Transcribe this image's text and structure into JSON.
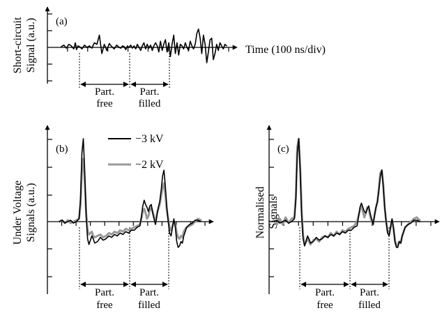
{
  "chart_data": [
    {
      "panel": "(a)",
      "type": "line",
      "ylabel_line1": "Short-circuit",
      "ylabel_line2": "Signal (a.u.)",
      "xlabel": "Time (100 ns/div)",
      "regions": [
        {
          "line1": "Part.",
          "line2": "free"
        },
        {
          "line1": "Part.",
          "line2": "filled"
        }
      ],
      "series": [
        {
          "name": "",
          "color": "#000000",
          "x": [
            0,
            0.15,
            0.3,
            0.45,
            0.6,
            0.75,
            0.85,
            0.92,
            1.0,
            1.1,
            1.25,
            1.4,
            1.55,
            1.7,
            1.85,
            2.0,
            2.15,
            2.3,
            2.45,
            2.6,
            2.75,
            2.9,
            3.05,
            3.2,
            3.35,
            3.5,
            3.6,
            3.7,
            3.8,
            3.9,
            4.0,
            4.1,
            4.2,
            4.3,
            4.4,
            4.5,
            4.6,
            4.7,
            4.8,
            4.9,
            5.0,
            5.1,
            5.2,
            5.3,
            5.4,
            5.5,
            5.6,
            5.7,
            5.8,
            5.9,
            6.0,
            6.1,
            6.2,
            6.3,
            6.4,
            6.5,
            6.6,
            6.7,
            6.8,
            6.9,
            7.0,
            7.1,
            7.2,
            7.3,
            7.4,
            7.5,
            7.6,
            7.7,
            7.8,
            7.9,
            8.0,
            8.1,
            8.2,
            8.3,
            8.4,
            8.5,
            8.6,
            8.7,
            8.8,
            8.9,
            9.0,
            9.1,
            9.2,
            9.3,
            9.4,
            9.5,
            9.6,
            9.7,
            9.8,
            9.9,
            10.0
          ],
          "values": [
            0.05,
            0.15,
            -0.05,
            0.2,
            0.1,
            -0.1,
            0.3,
            -0.15,
            0.1,
            0.05,
            -0.1,
            0.15,
            0.0,
            0.1,
            -0.05,
            0.3,
            0.2,
            0.8,
            -0.4,
            0.2,
            -0.2,
            0.25,
            0.05,
            -0.1,
            0.15,
            0.0,
            -0.05,
            0.1,
            0.05,
            -0.15,
            0.1,
            0.0,
            0.15,
            -0.05,
            0.1,
            -0.1,
            0.2,
            0.0,
            -0.2,
            0.1,
            0.3,
            -0.1,
            0.2,
            -0.05,
            0.15,
            -0.2,
            0.1,
            0.3,
            0.1,
            -0.3,
            0.4,
            -0.2,
            0.2,
            0.5,
            -0.3,
            0.3,
            -0.6,
            0.2,
            0.8,
            -0.4,
            0.3,
            -0.5,
            0.2,
            0.1,
            -0.1,
            0.3,
            0.0,
            -0.2,
            0.4,
            0.1,
            -0.1,
            0.2,
            0.9,
            1.2,
            0.6,
            -0.4,
            0.8,
            0.2,
            -1.0,
            -0.3,
            0.5,
            0.6,
            -0.8,
            -0.4,
            0.2,
            -0.2,
            0.3,
            0.1,
            -0.1,
            0.2,
            0.1
          ]
        }
      ]
    },
    {
      "panel": "(b)",
      "type": "line",
      "ylabel_line1": "Under Voltage",
      "ylabel_line2": "Signals (a.u.)",
      "regions": [
        {
          "line1": "Part.",
          "line2": "free"
        },
        {
          "line1": "Part.",
          "line2": "filled"
        }
      ],
      "legend_placement": "top-center",
      "series": [
        {
          "name": "−2 kV",
          "color": "#999999",
          "x": [
            0,
            0.2,
            0.4,
            0.6,
            0.8,
            1.0,
            1.2,
            1.4,
            1.5,
            1.6,
            1.7,
            1.8,
            1.9,
            2.0,
            2.1,
            2.2,
            2.3,
            2.4,
            2.5,
            2.7,
            2.9,
            3.1,
            3.3,
            3.5,
            3.7,
            3.9,
            4.1,
            4.3,
            4.5,
            4.7,
            4.9,
            5.1,
            5.3,
            5.5,
            5.7,
            5.8,
            5.9,
            6.0,
            6.1,
            6.2,
            6.3,
            6.4,
            6.5,
            6.6,
            6.7,
            6.8,
            6.9,
            7.0,
            7.1,
            7.2,
            7.3,
            7.4,
            7.5,
            7.6,
            7.7,
            7.8,
            7.9,
            8.0,
            8.1,
            8.2,
            8.3,
            8.4,
            8.5,
            8.6,
            8.7,
            8.8,
            8.9,
            9.0,
            9.2,
            9.4,
            9.6,
            9.8,
            10.0
          ],
          "values": [
            0.0,
            0.05,
            -0.05,
            0.05,
            -0.05,
            0.0,
            0.05,
            0.1,
            0.6,
            1.8,
            2.2,
            1.4,
            0.3,
            -0.3,
            -0.45,
            -0.4,
            -0.35,
            -0.5,
            -0.55,
            -0.5,
            -0.45,
            -0.55,
            -0.5,
            -0.4,
            -0.45,
            -0.35,
            -0.4,
            -0.3,
            -0.35,
            -0.25,
            -0.3,
            -0.25,
            -0.2,
            -0.15,
            -0.1,
            0.1,
            0.35,
            0.45,
            0.3,
            0.1,
            0.2,
            0.4,
            0.5,
            0.35,
            0.15,
            -0.05,
            0.3,
            0.45,
            0.6,
            0.9,
            1.2,
            1.35,
            0.9,
            0.4,
            0.1,
            -0.2,
            -0.3,
            -0.15,
            0.0,
            -0.1,
            -0.4,
            -0.55,
            -0.6,
            -0.5,
            -0.55,
            -0.35,
            -0.25,
            -0.2,
            -0.15,
            -0.1,
            0.0,
            0.1,
            0.05
          ]
        },
        {
          "name": "−3 kV",
          "color": "#000000",
          "x": [
            0,
            0.2,
            0.4,
            0.6,
            0.8,
            1.0,
            1.2,
            1.4,
            1.5,
            1.6,
            1.7,
            1.8,
            1.9,
            2.0,
            2.1,
            2.2,
            2.3,
            2.4,
            2.5,
            2.7,
            2.9,
            3.1,
            3.3,
            3.5,
            3.7,
            3.9,
            4.1,
            4.3,
            4.5,
            4.7,
            4.9,
            5.1,
            5.3,
            5.5,
            5.7,
            5.8,
            5.9,
            6.0,
            6.1,
            6.2,
            6.3,
            6.4,
            6.5,
            6.6,
            6.7,
            6.8,
            6.9,
            7.0,
            7.1,
            7.2,
            7.3,
            7.4,
            7.5,
            7.6,
            7.7,
            7.8,
            7.9,
            8.0,
            8.1,
            8.2,
            8.3,
            8.4,
            8.5,
            8.6,
            8.7,
            8.8,
            8.9,
            9.0,
            9.2,
            9.4,
            9.6,
            9.8,
            10.0
          ],
          "values": [
            0.0,
            0.05,
            -0.05,
            0.0,
            0.05,
            -0.05,
            0.0,
            0.1,
            0.8,
            2.4,
            2.9,
            1.8,
            0.2,
            -0.6,
            -0.8,
            -0.65,
            -0.5,
            -0.6,
            -0.75,
            -0.7,
            -0.55,
            -0.65,
            -0.6,
            -0.5,
            -0.55,
            -0.45,
            -0.5,
            -0.4,
            -0.45,
            -0.35,
            -0.4,
            -0.3,
            -0.3,
            -0.2,
            -0.15,
            0.15,
            0.55,
            0.75,
            0.6,
            0.5,
            0.35,
            0.55,
            0.6,
            0.3,
            0.1,
            -0.1,
            0.2,
            0.5,
            0.7,
            1.1,
            1.6,
            1.8,
            1.2,
            0.5,
            0.0,
            -0.4,
            -0.5,
            -0.2,
            0.1,
            -0.2,
            -0.7,
            -0.9,
            -0.85,
            -0.7,
            -0.75,
            -0.5,
            -0.35,
            -0.2,
            -0.1,
            -0.05,
            0.05,
            0.05,
            0.0
          ]
        }
      ]
    },
    {
      "panel": "(c)",
      "type": "line",
      "ylabel_line1": "Normalised",
      "ylabel_line2": "Signals",
      "regions": [
        {
          "line1": "Part.",
          "line2": "free"
        },
        {
          "line1": "Part.",
          "line2": "filled"
        }
      ],
      "series": [
        {
          "name": "−2 kV",
          "color": "#999999",
          "x": [
            0,
            0.2,
            0.4,
            0.6,
            0.8,
            1.0,
            1.2,
            1.4,
            1.5,
            1.6,
            1.7,
            1.8,
            1.9,
            2.0,
            2.1,
            2.2,
            2.3,
            2.4,
            2.5,
            2.7,
            2.9,
            3.1,
            3.3,
            3.5,
            3.7,
            3.9,
            4.1,
            4.3,
            4.5,
            4.7,
            4.9,
            5.1,
            5.3,
            5.5,
            5.7,
            5.8,
            5.9,
            6.0,
            6.1,
            6.2,
            6.3,
            6.4,
            6.5,
            6.6,
            6.7,
            6.8,
            6.9,
            7.0,
            7.1,
            7.2,
            7.3,
            7.4,
            7.5,
            7.6,
            7.7,
            7.8,
            7.9,
            8.0,
            8.1,
            8.2,
            8.3,
            8.4,
            8.5,
            8.6,
            8.7,
            8.8,
            8.9,
            9.0,
            9.2,
            9.4,
            9.6,
            9.8,
            10.0
          ],
          "values": [
            0.05,
            -0.1,
            0.1,
            -0.1,
            0.15,
            -0.05,
            0.1,
            0.15,
            0.9,
            2.6,
            2.9,
            1.9,
            0.4,
            -0.5,
            -0.8,
            -0.7,
            -0.55,
            -0.7,
            -0.8,
            -0.65,
            -0.6,
            -0.7,
            -0.55,
            -0.5,
            -0.55,
            -0.4,
            -0.5,
            -0.35,
            -0.45,
            -0.3,
            -0.35,
            -0.25,
            -0.2,
            -0.15,
            0.0,
            0.2,
            0.4,
            0.6,
            0.35,
            0.15,
            0.3,
            0.5,
            0.45,
            0.2,
            0.0,
            -0.1,
            0.25,
            0.5,
            0.7,
            1.2,
            1.7,
            1.8,
            1.3,
            0.5,
            0.0,
            -0.35,
            -0.45,
            -0.2,
            0.05,
            -0.25,
            -0.65,
            -0.85,
            -0.8,
            -0.7,
            -0.75,
            -0.5,
            -0.35,
            -0.2,
            -0.1,
            0.0,
            0.1,
            0.15,
            0.05
          ]
        },
        {
          "name": "−3 kV",
          "color": "#000000",
          "x": [
            0,
            0.2,
            0.4,
            0.6,
            0.8,
            1.0,
            1.2,
            1.4,
            1.5,
            1.6,
            1.7,
            1.8,
            1.9,
            2.0,
            2.1,
            2.2,
            2.3,
            2.4,
            2.5,
            2.7,
            2.9,
            3.1,
            3.3,
            3.5,
            3.7,
            3.9,
            4.1,
            4.3,
            4.5,
            4.7,
            4.9,
            5.1,
            5.3,
            5.5,
            5.7,
            5.8,
            5.9,
            6.0,
            6.1,
            6.2,
            6.3,
            6.4,
            6.5,
            6.6,
            6.7,
            6.8,
            6.9,
            7.0,
            7.1,
            7.2,
            7.3,
            7.4,
            7.5,
            7.6,
            7.7,
            7.8,
            7.9,
            8.0,
            8.1,
            8.2,
            8.3,
            8.4,
            8.5,
            8.6,
            8.7,
            8.8,
            8.9,
            9.0,
            9.2,
            9.4,
            9.6,
            9.8,
            10.0
          ],
          "values": [
            0.0,
            0.05,
            -0.05,
            0.0,
            0.05,
            -0.05,
            0.0,
            0.1,
            0.8,
            2.4,
            2.9,
            1.8,
            0.2,
            -0.6,
            -0.85,
            -0.7,
            -0.5,
            -0.6,
            -0.75,
            -0.7,
            -0.55,
            -0.65,
            -0.6,
            -0.5,
            -0.55,
            -0.45,
            -0.5,
            -0.4,
            -0.45,
            -0.35,
            -0.4,
            -0.3,
            -0.3,
            -0.2,
            -0.15,
            0.15,
            0.5,
            0.65,
            0.5,
            0.35,
            0.3,
            0.45,
            0.55,
            0.3,
            0.1,
            -0.1,
            0.2,
            0.5,
            0.7,
            1.1,
            1.6,
            1.8,
            1.2,
            0.5,
            0.0,
            -0.4,
            -0.5,
            -0.2,
            0.1,
            -0.2,
            -0.7,
            -0.9,
            -0.9,
            -0.7,
            -0.75,
            -0.5,
            -0.35,
            -0.2,
            -0.1,
            -0.05,
            0.05,
            0.05,
            0.0
          ]
        }
      ]
    }
  ]
}
